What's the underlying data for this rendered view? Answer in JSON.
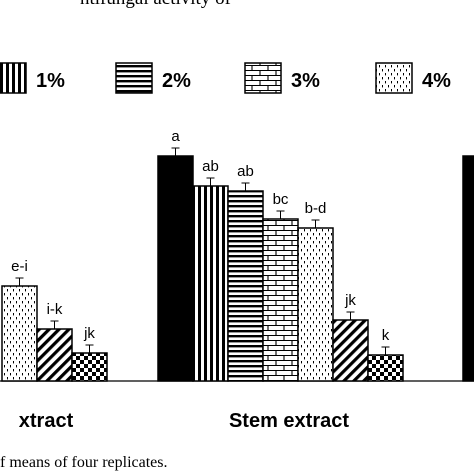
{
  "chart_data": {
    "type": "bar",
    "title_fragment": "ntifungal activity of ",
    "caption_fragment": "f means of four replicates.",
    "legend": {
      "placement": "top",
      "entries": [
        {
          "label": "1%",
          "pattern": "vertical-stripes"
        },
        {
          "label": "2%",
          "pattern": "horizontal-stripes"
        },
        {
          "label": "3%",
          "pattern": "brick"
        },
        {
          "label": "4%",
          "pattern": "dots"
        }
      ]
    },
    "groups": [
      {
        "label": "xtract",
        "bars": [
          {
            "pattern": "dots",
            "value": 95,
            "letter": "e-i"
          },
          {
            "pattern": "diagonal",
            "value": 52,
            "letter": "i-k"
          },
          {
            "pattern": "checker",
            "value": 28,
            "letter": "jk"
          }
        ]
      },
      {
        "label": "Stem extract",
        "bars": [
          {
            "pattern": "solid",
            "value": 225,
            "letter": "a"
          },
          {
            "pattern": "vertical-stripes",
            "value": 195,
            "letter": "ab"
          },
          {
            "pattern": "horizontal-stripes",
            "value": 190,
            "letter": "ab"
          },
          {
            "pattern": "brick",
            "value": 162,
            "letter": "bc"
          },
          {
            "pattern": "dots",
            "value": 153,
            "letter": "b-d"
          },
          {
            "pattern": "diagonal",
            "value": 61,
            "letter": "jk"
          },
          {
            "pattern": "checker",
            "value": 26,
            "letter": "k"
          }
        ]
      },
      {
        "label": "",
        "bars": [
          {
            "pattern": "solid",
            "value": 225,
            "letter": ""
          }
        ]
      }
    ],
    "ylim": [
      0,
      260
    ],
    "grid": false
  }
}
